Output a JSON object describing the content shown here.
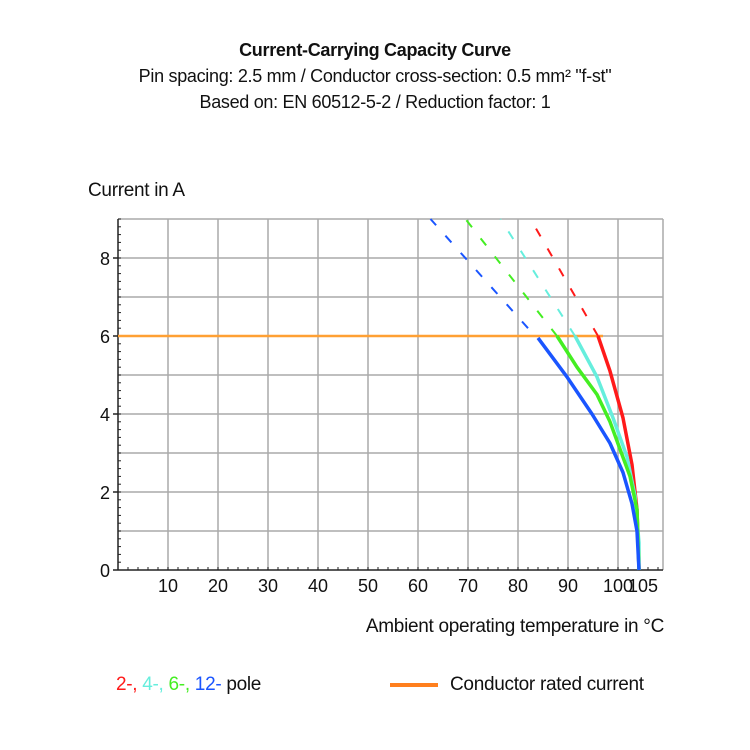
{
  "chart_data": {
    "type": "line",
    "title": "Current-Carrying Capacity Curve",
    "subtitle": [
      "Pin spacing: 2.5 mm / Conductor cross-section: 0.5 mm² \"f-st\"",
      "Based on: EN 60512-5-2 / Reduction factor: 1"
    ],
    "xlabel": "Ambient operating temperature in °C",
    "ylabel": "Current in A",
    "xlim": [
      0,
      109
    ],
    "ylim": [
      0,
      9
    ],
    "x_ticks": [
      10,
      20,
      30,
      40,
      50,
      60,
      70,
      80,
      90,
      100,
      105
    ],
    "y_ticks": [
      0,
      2,
      4,
      6,
      8
    ],
    "grid": true,
    "series": [
      {
        "color": "#ff1a1a",
        "solid": [
          [
            96,
            6
          ],
          [
            98.4,
            5.1
          ],
          [
            101,
            3.9
          ],
          [
            102.8,
            2.7
          ],
          [
            103.8,
            1.55
          ],
          [
            104.2,
            0
          ]
        ],
        "dashed": [
          [
            96,
            6
          ],
          [
            82.5,
            9
          ]
        ]
      },
      {
        "color": "#66eedd",
        "solid": [
          [
            91.4,
            6
          ],
          [
            95.8,
            4.95
          ],
          [
            99,
            3.9
          ],
          [
            101.8,
            2.9
          ],
          [
            103.4,
            1.9
          ],
          [
            104.2,
            0.7
          ],
          [
            104.2,
            0
          ]
        ],
        "dashed": [
          [
            91.4,
            6
          ],
          [
            76.5,
            9
          ]
        ]
      },
      {
        "color": "#44ee22",
        "solid": [
          [
            87.8,
            6
          ],
          [
            91.8,
            5.2
          ],
          [
            95.8,
            4.5
          ],
          [
            98.4,
            3.8
          ],
          [
            100.4,
            3.1
          ],
          [
            102.4,
            2.4
          ],
          [
            103.8,
            1.55
          ],
          [
            104.2,
            0
          ]
        ],
        "dashed": [
          [
            87.8,
            6
          ],
          [
            69.5,
            9
          ]
        ]
      },
      {
        "color": "#1a55ff",
        "solid": [
          [
            84,
            5.95
          ],
          [
            89.8,
            4.95
          ],
          [
            94.8,
            4.0
          ],
          [
            98.4,
            3.25
          ],
          [
            101,
            2.5
          ],
          [
            102.8,
            1.7
          ],
          [
            103.8,
            1.0
          ],
          [
            104.2,
            0
          ]
        ],
        "dashed": [
          [
            82,
            6.2
          ],
          [
            62.5,
            9
          ]
        ]
      }
    ],
    "rated_current": {
      "value": 6,
      "x_end": 97,
      "color": "#ffa033"
    },
    "legend": {
      "poles": [
        {
          "text": "2-,",
          "color": "#ff1a1a"
        },
        {
          "text": "4-,",
          "color": "#66eedd"
        },
        {
          "text": "6-,",
          "color": "#44ee22"
        },
        {
          "text": "12-",
          "color": "#1a55ff"
        }
      ],
      "poles_suffix": "pole",
      "rated_label": "Conductor rated current",
      "rated_color": "#ff7f1e",
      "placement": "bottom"
    }
  }
}
